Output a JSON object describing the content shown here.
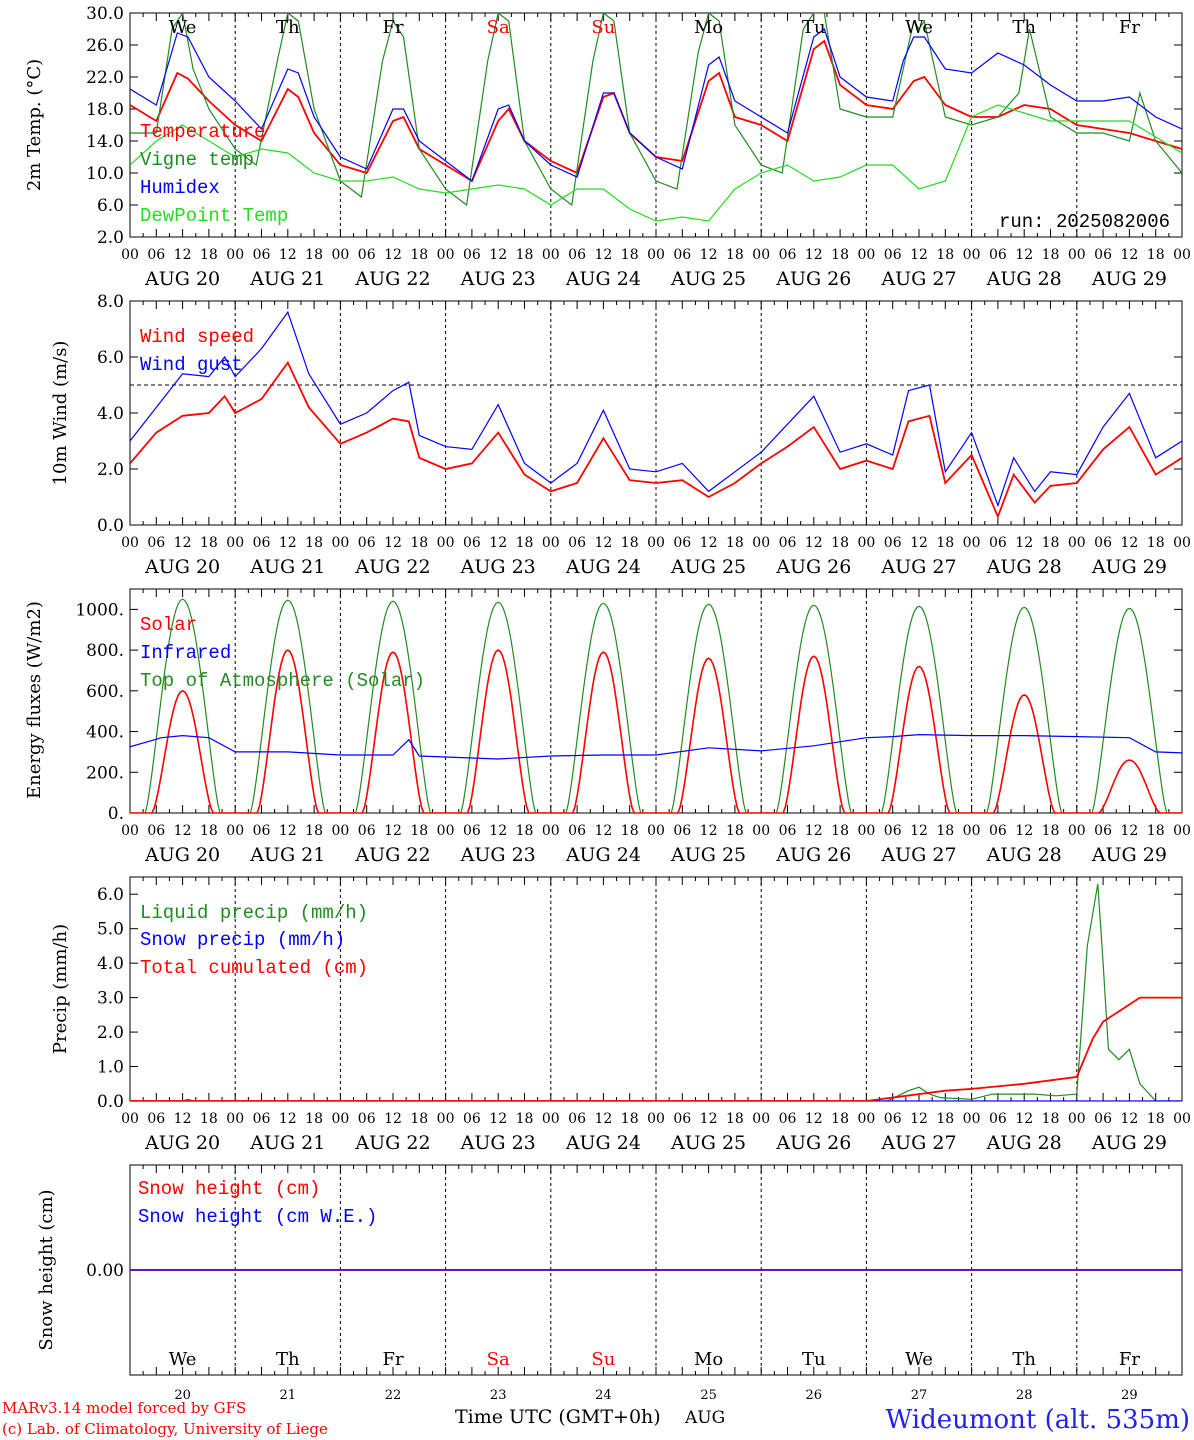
{
  "footer": {
    "model": "MARv3.14 model forced by GFS",
    "lab": "(c) Lab. of Climatology, University of Liege",
    "xlabel": "Time UTC (GMT+0h)",
    "month": "AUG",
    "station": "Wideumont (alt. 535m)"
  },
  "days": [
    {
      "dow": "We",
      "date": "20",
      "label": "AUG 20",
      "weekend": false
    },
    {
      "dow": "Th",
      "date": "21",
      "label": "AUG 21",
      "weekend": false
    },
    {
      "dow": "Fr",
      "date": "22",
      "label": "AUG 22",
      "weekend": false
    },
    {
      "dow": "Sa",
      "date": "23",
      "label": "AUG 23",
      "weekend": true
    },
    {
      "dow": "Su",
      "date": "24",
      "label": "AUG 24",
      "weekend": true
    },
    {
      "dow": "Mo",
      "date": "25",
      "label": "AUG 25",
      "weekend": false
    },
    {
      "dow": "Tu",
      "date": "26",
      "label": "AUG 26",
      "weekend": false
    },
    {
      "dow": "We",
      "date": "27",
      "label": "AUG 27",
      "weekend": false
    },
    {
      "dow": "Th",
      "date": "28",
      "label": "AUG 28",
      "weekend": false
    },
    {
      "dow": "Fr",
      "date": "29",
      "label": "AUG 29",
      "weekend": false
    }
  ],
  "hour_ticks": [
    "00",
    "06",
    "12",
    "18"
  ],
  "colors": {
    "red": "#ff0000",
    "green": "#228b22",
    "blue": "#0000ff",
    "lightgreen": "#22dd22",
    "weekend": "#ff0000"
  },
  "chart_data": [
    {
      "type": "line",
      "ylabel": "2m Temp. (°C)",
      "ylim": [
        2,
        30
      ],
      "yticks": [
        "2.0",
        "6.0",
        "10.0",
        "14.0",
        "18.0",
        "22.0",
        "26.0",
        "30.0"
      ],
      "x_unit": "days since 2025-08-20 00 UTC",
      "annotation": "run: 2025082006",
      "legend": [
        "Temperature",
        "Vigne temp",
        "Humidex",
        "DewPoint Temp"
      ],
      "series": [
        {
          "name": "Temperature",
          "color": "red",
          "x": [
            0,
            0.25,
            0.45,
            0.55,
            0.75,
            1,
            1.25,
            1.5,
            1.6,
            1.75,
            2,
            2.25,
            2.5,
            2.6,
            2.75,
            3,
            3.25,
            3.5,
            3.6,
            3.75,
            4,
            4.25,
            4.5,
            4.6,
            4.75,
            5,
            5.25,
            5.5,
            5.6,
            5.75,
            6,
            6.25,
            6.5,
            6.6,
            6.75,
            7,
            7.25,
            7.45,
            7.55,
            7.75,
            8,
            8.25,
            8.5,
            8.75,
            9,
            9.25,
            9.5,
            9.75,
            10
          ],
          "values": [
            18.5,
            16.5,
            22.5,
            21.8,
            19,
            16,
            14,
            20.5,
            19.5,
            15,
            11,
            10,
            16.5,
            17,
            13,
            11,
            9,
            16.5,
            18,
            14,
            11.5,
            10,
            19.5,
            20,
            15,
            12,
            11.5,
            21.5,
            22.5,
            17,
            16,
            14,
            25.5,
            26.5,
            21,
            18.5,
            18,
            21.5,
            22,
            18.5,
            17,
            17,
            18.5,
            18,
            16,
            15.5,
            15,
            14,
            13
          ]
        },
        {
          "name": "Vigne temp",
          "color": "green",
          "x": [
            0,
            0.25,
            0.4,
            0.5,
            0.6,
            0.75,
            1,
            1.2,
            1.4,
            1.5,
            1.6,
            1.75,
            2,
            2.2,
            2.4,
            2.5,
            2.6,
            2.75,
            3,
            3.2,
            3.4,
            3.5,
            3.6,
            3.75,
            4,
            4.2,
            4.4,
            4.5,
            4.6,
            4.75,
            5,
            5.2,
            5.4,
            5.5,
            5.6,
            5.75,
            6,
            6.2,
            6.4,
            6.5,
            6.6,
            6.75,
            7,
            7.25,
            7.45,
            7.5,
            7.55,
            7.75,
            8,
            8.25,
            8.45,
            8.55,
            8.75,
            9,
            9.25,
            9.5,
            9.6,
            9.75,
            10
          ],
          "values": [
            15,
            15,
            28,
            30,
            23,
            18,
            13,
            11,
            24,
            30,
            29,
            18,
            9,
            7,
            24,
            29,
            27,
            13,
            8,
            6,
            24,
            30,
            29,
            14,
            8,
            6,
            24,
            30,
            29,
            15,
            9,
            8,
            25,
            30,
            29,
            16,
            11,
            10,
            28,
            30,
            30,
            18,
            17,
            17,
            29,
            28,
            29,
            17,
            16,
            17,
            20,
            28,
            17,
            15,
            15,
            14,
            20,
            14,
            10
          ]
        },
        {
          "name": "Humidex",
          "color": "blue",
          "x": [
            0,
            0.25,
            0.45,
            0.55,
            0.75,
            1,
            1.25,
            1.5,
            1.6,
            1.75,
            2,
            2.25,
            2.5,
            2.6,
            2.75,
            3,
            3.25,
            3.5,
            3.6,
            3.75,
            4,
            4.25,
            4.5,
            4.6,
            4.75,
            5,
            5.25,
            5.5,
            5.6,
            5.75,
            6,
            6.25,
            6.5,
            6.6,
            6.75,
            7,
            7.25,
            7.35,
            7.45,
            7.55,
            7.75,
            8,
            8.25,
            8.5,
            8.75,
            9,
            9.25,
            9.5,
            9.75,
            10
          ],
          "values": [
            20.5,
            18.5,
            27.5,
            27,
            22,
            19,
            15.5,
            23,
            22.5,
            17,
            12,
            10.5,
            18,
            18,
            14,
            11.5,
            9,
            18,
            18.5,
            14,
            11,
            9.5,
            20,
            20,
            15,
            12,
            10.5,
            23.5,
            24.5,
            19,
            17,
            15,
            27,
            28,
            22,
            19.5,
            19,
            24,
            27,
            27,
            23,
            22.5,
            25,
            23.5,
            21,
            19,
            19,
            19.5,
            17,
            15.5
          ]
        },
        {
          "name": "DewPoint Temp",
          "color": "lightgreen",
          "x": [
            0,
            0.25,
            0.5,
            0.75,
            1,
            1.25,
            1.5,
            1.75,
            2,
            2.25,
            2.5,
            2.75,
            3,
            3.25,
            3.5,
            3.75,
            4,
            4.25,
            4.5,
            4.75,
            5,
            5.25,
            5.5,
            5.75,
            6,
            6.25,
            6.5,
            6.75,
            7,
            7.25,
            7.5,
            7.75,
            8,
            8.25,
            8.5,
            8.75,
            9,
            9.25,
            9.5,
            9.75,
            10
          ],
          "values": [
            11,
            14,
            16,
            14,
            12,
            13,
            12.5,
            10,
            9,
            9,
            9.5,
            8,
            7.5,
            8,
            8.5,
            8,
            6,
            8,
            8,
            5.5,
            4,
            4.5,
            4,
            8,
            10,
            11,
            9,
            9.5,
            11,
            11,
            8,
            9,
            17,
            18.5,
            17.5,
            16.5,
            16.5,
            16.5,
            16.5,
            14.5,
            12.5
          ]
        }
      ]
    },
    {
      "type": "line",
      "ylabel": "10m Wind (m/s)",
      "ylim": [
        0,
        8
      ],
      "yticks": [
        "0.0",
        "2.0",
        "4.0",
        "6.0",
        "8.0"
      ],
      "x_unit": "days since 2025-08-20 00 UTC",
      "reference_line": 5,
      "legend": [
        "Wind speed",
        "Wind gust"
      ],
      "series": [
        {
          "name": "Wind speed",
          "color": "red",
          "x": [
            0,
            0.25,
            0.5,
            0.75,
            0.9,
            1,
            1.25,
            1.5,
            1.7,
            2,
            2.25,
            2.5,
            2.65,
            2.75,
            3,
            3.25,
            3.5,
            3.75,
            4,
            4.25,
            4.5,
            4.75,
            5,
            5.25,
            5.5,
            5.75,
            6,
            6.25,
            6.5,
            6.75,
            7,
            7.25,
            7.4,
            7.6,
            7.75,
            8,
            8.25,
            8.4,
            8.6,
            8.75,
            9,
            9.25,
            9.5,
            9.75,
            10
          ],
          "values": [
            2.2,
            3.3,
            3.9,
            4,
            4.6,
            4.0,
            4.5,
            5.8,
            4.2,
            2.9,
            3.3,
            3.8,
            3.7,
            2.4,
            2.0,
            2.2,
            3.3,
            1.8,
            1.2,
            1.5,
            3.1,
            1.6,
            1.5,
            1.6,
            1.0,
            1.5,
            2.2,
            2.8,
            3.5,
            2.0,
            2.3,
            2.0,
            3.7,
            3.9,
            1.5,
            2.5,
            0.3,
            1.8,
            0.8,
            1.4,
            1.5,
            2.7,
            3.5,
            1.8,
            2.4
          ]
        },
        {
          "name": "Wind gust",
          "color": "blue",
          "x": [
            0,
            0.25,
            0.5,
            0.75,
            0.9,
            1,
            1.25,
            1.5,
            1.7,
            2,
            2.25,
            2.5,
            2.65,
            2.75,
            3,
            3.25,
            3.5,
            3.75,
            4,
            4.25,
            4.5,
            4.75,
            5,
            5.25,
            5.5,
            5.75,
            6,
            6.25,
            6.5,
            6.75,
            7,
            7.25,
            7.4,
            7.6,
            7.75,
            8,
            8.25,
            8.4,
            8.6,
            8.75,
            9,
            9.25,
            9.5,
            9.75,
            10
          ],
          "values": [
            3.0,
            4.2,
            5.4,
            5.3,
            6.0,
            5.3,
            6.3,
            7.6,
            5.4,
            3.6,
            4.0,
            4.8,
            5.1,
            3.2,
            2.8,
            2.7,
            4.3,
            2.2,
            1.5,
            2.2,
            4.1,
            2.0,
            1.9,
            2.2,
            1.2,
            1.9,
            2.6,
            3.6,
            4.6,
            2.6,
            2.9,
            2.5,
            4.8,
            5.0,
            1.9,
            3.3,
            0.7,
            2.4,
            1.2,
            1.9,
            1.8,
            3.5,
            4.7,
            2.4,
            3.0
          ]
        }
      ]
    },
    {
      "type": "line",
      "ylabel": "Energy fluxes (W/m2)",
      "ylim": [
        0,
        1100
      ],
      "yticks": [
        "0.",
        "200.",
        "400.",
        "600.",
        "800.",
        "1000."
      ],
      "x_unit": "days since 2025-08-20 00 UTC",
      "legend": [
        "Solar",
        "Infrared",
        "Top of Atmosphere (Solar)"
      ],
      "toa_daily_peaks": [
        1050,
        1045,
        1040,
        1035,
        1030,
        1025,
        1020,
        1015,
        1010,
        1005
      ],
      "solar_daily_peaks": [
        600,
        800,
        790,
        800,
        790,
        760,
        770,
        720,
        580,
        260
      ],
      "series": [
        {
          "name": "Infrared",
          "color": "blue",
          "x": [
            0,
            0.3,
            0.5,
            0.75,
            1,
            1.5,
            2,
            2.5,
            2.65,
            2.75,
            3,
            3.5,
            4,
            4.5,
            5,
            5.5,
            6,
            6.5,
            7,
            7.25,
            7.5,
            8,
            8.5,
            9,
            9.5,
            9.75,
            10
          ],
          "values": [
            325,
            370,
            380,
            370,
            300,
            300,
            285,
            285,
            360,
            280,
            275,
            265,
            280,
            285,
            285,
            320,
            305,
            330,
            370,
            375,
            385,
            380,
            380,
            375,
            370,
            300,
            295
          ]
        }
      ]
    },
    {
      "type": "line",
      "ylabel": "Precip (mm/h)",
      "ylim": [
        0,
        6.5
      ],
      "yticks": [
        "0.0",
        "1.0",
        "2.0",
        "3.0",
        "4.0",
        "5.0",
        "6.0"
      ],
      "x_unit": "days since 2025-08-20 00 UTC",
      "legend": [
        "Liquid precip (mm/h)",
        "Snow precip (mm/h)",
        "Total cumulated (cm)"
      ],
      "series": [
        {
          "name": "Liquid precip (mm/h)",
          "color": "green",
          "x": [
            0,
            0.5,
            0.55,
            0.6,
            7.2,
            7.4,
            7.5,
            7.6,
            7.7,
            8,
            8.2,
            8.4,
            8.6,
            8.8,
            9,
            9.1,
            9.2,
            9.25,
            9.3,
            9.4,
            9.5,
            9.6,
            9.75,
            10
          ],
          "values": [
            0,
            0,
            0.05,
            0,
            0,
            0.3,
            0.4,
            0.2,
            0.1,
            0.05,
            0.2,
            0.2,
            0.2,
            0.15,
            0.2,
            4.5,
            6.3,
            4.0,
            1.5,
            1.2,
            1.5,
            0.5,
            0,
            0
          ]
        },
        {
          "name": "Snow precip (mm/h)",
          "color": "blue",
          "x": [
            0,
            10
          ],
          "values": [
            0,
            0
          ]
        },
        {
          "name": "Total cumulated (cm)",
          "color": "red",
          "x": [
            0,
            7.0,
            7.5,
            7.75,
            8,
            8.5,
            9.0,
            9.15,
            9.25,
            9.4,
            9.6,
            10
          ],
          "values": [
            0,
            0,
            0.2,
            0.3,
            0.35,
            0.5,
            0.7,
            1.8,
            2.3,
            2.6,
            3.0,
            3.0
          ]
        }
      ]
    },
    {
      "type": "line",
      "ylabel": "Snow height (cm)",
      "ylim": [
        -1,
        1
      ],
      "yticks": [
        "0.00"
      ],
      "x_unit": "days since 2025-08-20 00 UTC",
      "legend": [
        "Snow height (cm)",
        "Snow height (cm W.E.)"
      ],
      "series": [
        {
          "name": "Snow height (cm)",
          "color": "red",
          "x": [
            0,
            10
          ],
          "values": [
            0,
            0
          ]
        },
        {
          "name": "Snow height (cm W.E.)",
          "color": "blue",
          "x": [
            0,
            10
          ],
          "values": [
            0,
            0
          ]
        }
      ]
    }
  ]
}
